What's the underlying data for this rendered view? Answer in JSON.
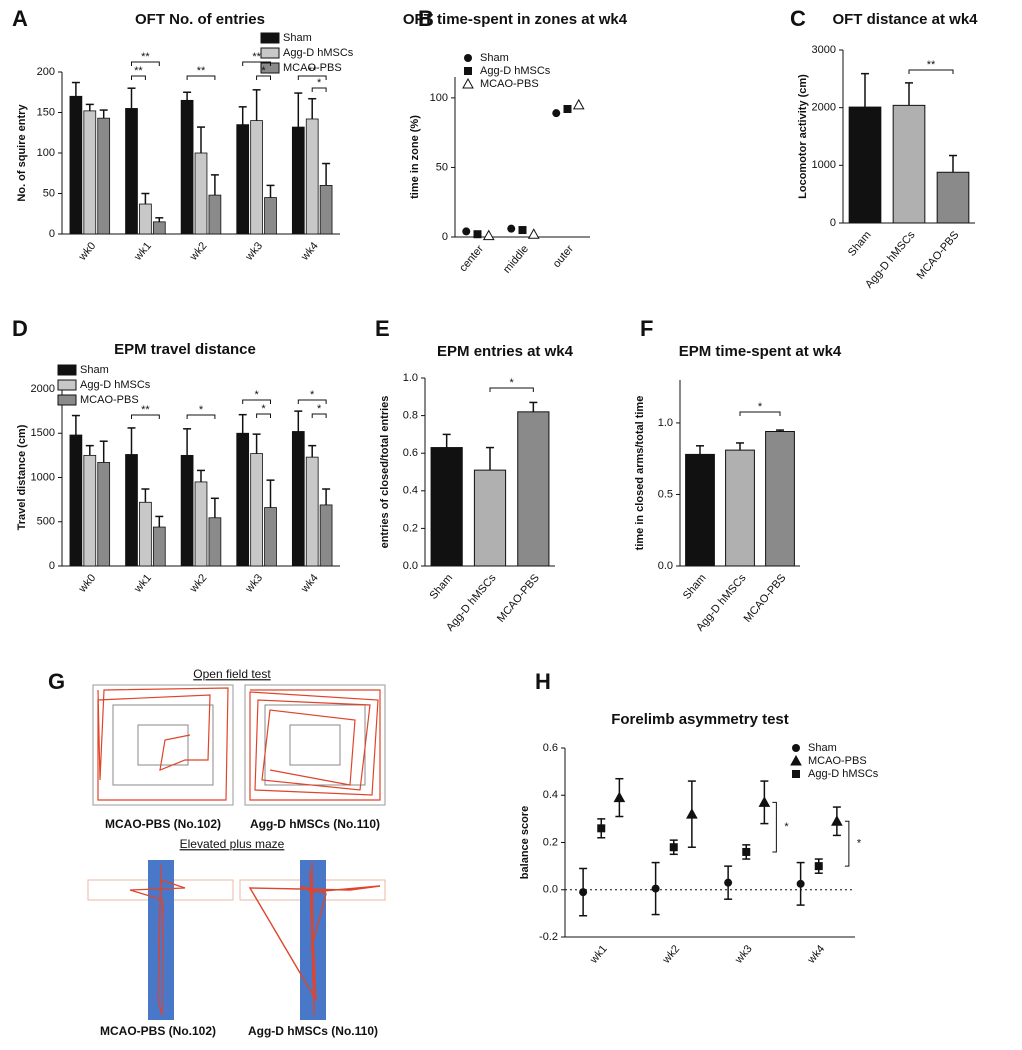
{
  "chart_data": [
    {
      "type": "bar",
      "label": "A",
      "title": "OFT No. of entries",
      "ylabel": "No. of squire entry",
      "categories": [
        "wk0",
        "wk1",
        "wk2",
        "wk3",
        "wk4"
      ],
      "series": [
        {
          "name": "Sham",
          "color": "#111111",
          "values": [
            170,
            155,
            165,
            135,
            132
          ],
          "errors": [
            17,
            25,
            10,
            22,
            42
          ]
        },
        {
          "name": "Agg-D hMSCs",
          "color": "#c8c8c8",
          "values": [
            152,
            37,
            100,
            140,
            142
          ],
          "errors": [
            8,
            13,
            32,
            38,
            25
          ]
        },
        {
          "name": "MCAO-PBS",
          "color": "#8a8a8a",
          "values": [
            143,
            15,
            48,
            45,
            60
          ],
          "errors": [
            10,
            5,
            25,
            15,
            27
          ]
        }
      ],
      "ylim": [
        0,
        200
      ],
      "yticks": [
        0,
        50,
        100,
        150,
        200
      ],
      "annotations": [
        "**",
        "**",
        "**",
        "**",
        "*",
        "**",
        "*",
        "*"
      ]
    },
    {
      "type": "scatter",
      "label": "B",
      "title": "OFT time-spent in zones at wk4",
      "ylabel": "time in zone (%)",
      "categories": [
        "center",
        "middle",
        "outer"
      ],
      "series": [
        {
          "name": "Sham",
          "color": "#111111",
          "marker": "circle",
          "values": [
            4,
            6,
            89
          ]
        },
        {
          "name": "Agg-D hMSCs",
          "color": "#111111",
          "marker": "square",
          "values": [
            2,
            5,
            92
          ]
        },
        {
          "name": "MCAO-PBS",
          "color": "#111111",
          "marker": "triangle-open",
          "values": [
            1,
            2,
            95
          ]
        }
      ],
      "ylim": [
        0,
        115
      ],
      "yticks": [
        0,
        50,
        100
      ]
    },
    {
      "type": "bar",
      "label": "C",
      "title": "OFT distance at wk4",
      "ylabel": "Locomotor activity (cm)",
      "categories": [
        "Sham",
        "Agg-D hMSCs",
        "MCAO-PBS"
      ],
      "values": [
        2010,
        2040,
        880
      ],
      "errors": [
        580,
        390,
        290
      ],
      "colors": [
        "#111111",
        "#b0b0b0",
        "#8a8a8a"
      ],
      "ylim": [
        0,
        3000
      ],
      "yticks": [
        0,
        1000,
        2000,
        3000
      ],
      "annotations": [
        "**"
      ]
    },
    {
      "type": "bar",
      "label": "D",
      "title": "EPM travel distance",
      "ylabel": "Travel distance (cm)",
      "categories": [
        "wk0",
        "wk1",
        "wk2",
        "wk3",
        "wk4"
      ],
      "series": [
        {
          "name": "Sham",
          "color": "#111111",
          "values": [
            1480,
            1260,
            1250,
            1500,
            1520
          ],
          "errors": [
            220,
            300,
            300,
            210,
            230
          ]
        },
        {
          "name": "Agg-D hMSCs",
          "color": "#c8c8c8",
          "values": [
            1250,
            720,
            950,
            1270,
            1230
          ],
          "errors": [
            110,
            150,
            130,
            220,
            130
          ]
        },
        {
          "name": "MCAO-PBS",
          "color": "#8a8a8a",
          "values": [
            1170,
            440,
            545,
            660,
            690
          ],
          "errors": [
            240,
            120,
            220,
            310,
            180
          ]
        }
      ],
      "ylim": [
        0,
        2000
      ],
      "yticks": [
        0,
        500,
        1000,
        1500,
        2000
      ],
      "annotations": [
        "**",
        "*",
        "*",
        "*",
        "*",
        "*"
      ]
    },
    {
      "type": "bar",
      "label": "E",
      "title": "EPM entries at wk4",
      "ylabel": "entries of closed/total entries",
      "categories": [
        "Sham",
        "Agg-D hMSCs",
        "MCAO-PBS"
      ],
      "values": [
        0.63,
        0.51,
        0.82
      ],
      "errors": [
        0.07,
        0.12,
        0.05
      ],
      "colors": [
        "#111111",
        "#b0b0b0",
        "#8a8a8a"
      ],
      "ylim": [
        0,
        1
      ],
      "yticks": [
        {
          "value": 0,
          "label": "0.0"
        },
        0.2,
        0.4,
        0.6,
        0.8,
        {
          "value": 1,
          "label": "1.0"
        }
      ],
      "annotations": [
        "*"
      ]
    },
    {
      "type": "bar",
      "label": "F",
      "title": "EPM time-spent at wk4",
      "ylabel": "time in closed arms/total time",
      "categories": [
        "Sham",
        "Agg-D hMSCs",
        "MCAO-PBS"
      ],
      "values": [
        0.78,
        0.81,
        0.94
      ],
      "errors": [
        0.06,
        0.05,
        0.01
      ],
      "colors": [
        "#111111",
        "#b0b0b0",
        "#8a8a8a"
      ],
      "ylim": [
        0,
        1.3
      ],
      "yticks": [
        {
          "value": 0,
          "label": "0.0"
        },
        0.5,
        {
          "value": 1,
          "label": "1.0"
        }
      ],
      "annotations": [
        "*"
      ]
    },
    {
      "type": "image",
      "label": "G",
      "sections": [
        {
          "title": "Open field test",
          "captions": [
            "MCAO-PBS (No.102)",
            "Agg-D hMSCs (No.110)"
          ]
        },
        {
          "title": "Elevated plus maze",
          "captions": [
            "MCAO-PBS (No.102)",
            "Agg-D hMSCs (No.110)"
          ]
        }
      ]
    },
    {
      "type": "errorpoint",
      "label": "H",
      "title": "Forelimb asymmetry test",
      "ylabel": "balance score",
      "categories": [
        "wk1",
        "wk2",
        "wk3",
        "wk4"
      ],
      "series": [
        {
          "name": "Sham",
          "color": "#111111",
          "marker": "circle",
          "values": [
            -0.01,
            0.005,
            0.03,
            0.025
          ],
          "errors": [
            0.1,
            0.11,
            0.07,
            0.09
          ]
        },
        {
          "name": "MCAO-PBS",
          "color": "#111111",
          "marker": "triangle",
          "values": [
            0.39,
            0.32,
            0.37,
            0.29
          ],
          "errors": [
            0.08,
            0.14,
            0.09,
            0.06
          ]
        },
        {
          "name": "Agg-D hMSCs",
          "color": "#111111",
          "marker": "square",
          "values": [
            0.26,
            0.18,
            0.16,
            0.1
          ],
          "errors": [
            0.04,
            0.03,
            0.03,
            0.03
          ]
        }
      ],
      "ylim": [
        -0.2,
        0.6
      ],
      "yticks": [
        -0.2,
        {
          "value": 0,
          "label": "0.0"
        },
        0.2,
        0.4,
        0.6
      ],
      "zero_line": true,
      "annotations": [
        "*",
        "*"
      ]
    }
  ]
}
